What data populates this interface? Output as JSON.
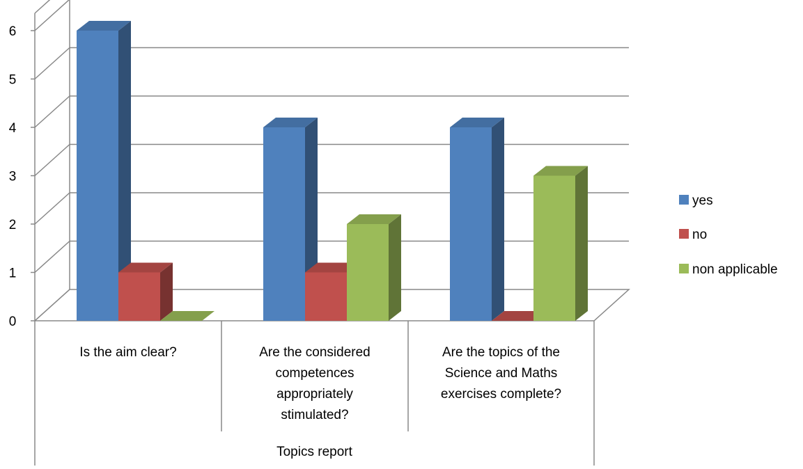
{
  "chart_data": {
    "type": "bar",
    "style": "3d-clustered-column",
    "title": "",
    "xlabel": "",
    "ylabel": "",
    "group_label": "Topics report",
    "categories": [
      "Is the aim clear?",
      "Are the considered competences appropriately stimulated?",
      "Are the topics of the Science and Maths exercises complete?"
    ],
    "category_lines": [
      [
        "Is the aim clear?"
      ],
      [
        "Are the considered",
        "competences",
        "appropriately",
        "stimulated?"
      ],
      [
        "Are the topics of the",
        "Science and Maths",
        "exercises complete?"
      ]
    ],
    "series": [
      {
        "name": "yes",
        "values": [
          6,
          4,
          4
        ],
        "color": "#4F81BD"
      },
      {
        "name": "no",
        "values": [
          1,
          1,
          0
        ],
        "color": "#C0504D"
      },
      {
        "name": "non applicable",
        "values": [
          0,
          2,
          3
        ],
        "color": "#9BBB59"
      }
    ],
    "y_ticks": [
      "0",
      "1",
      "2",
      "3",
      "4",
      "5",
      "6"
    ],
    "ylim": [
      0,
      6
    ],
    "grid": true,
    "legend_position": "right"
  }
}
